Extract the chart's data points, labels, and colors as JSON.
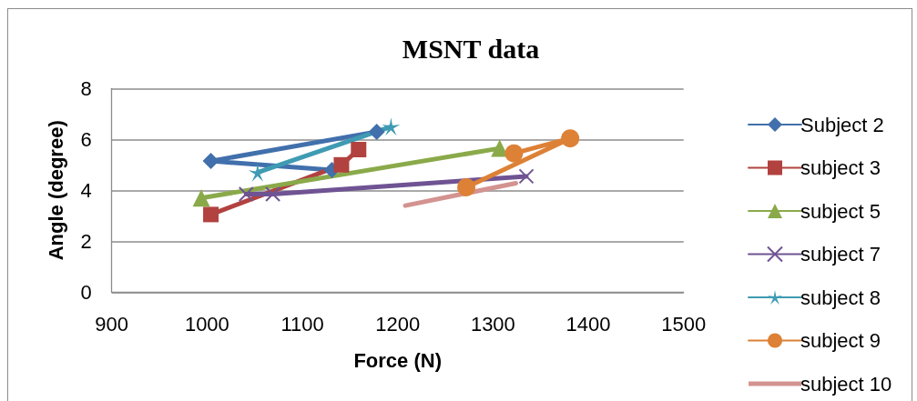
{
  "chart_data": {
    "type": "line",
    "title": "MSNT data",
    "xlabel": "Force (N)",
    "ylabel": "Angle (degree)",
    "xlim": [
      900,
      1500
    ],
    "xticks": [
      900,
      1000,
      1100,
      1200,
      1300,
      1400,
      1500
    ],
    "ylim": [
      0,
      8
    ],
    "yticks": [
      0,
      2,
      4,
      6,
      8
    ],
    "grid": "y",
    "legend": "right",
    "line_style": "solid",
    "series": [
      {
        "name": "Subject 2",
        "color": "#4170ac",
        "marker": "diamond",
        "x": [
          1131,
          1004,
          1178
        ],
        "values": [
          4.8,
          5.15,
          6.3
        ]
      },
      {
        "name": "subject 3",
        "color": "#b2423f",
        "marker": "square",
        "x": [
          1004,
          1141,
          1159
        ],
        "values": [
          3.05,
          5.0,
          5.6
        ]
      },
      {
        "name": "subject 5",
        "color": "#8aaa4a",
        "marker": "triangle",
        "x": [
          994,
          1307
        ],
        "values": [
          3.7,
          5.65
        ]
      },
      {
        "name": "subject 7",
        "color": "#6f5393",
        "marker": "cross",
        "x": [
          1041,
          1069,
          1335
        ],
        "values": [
          3.85,
          3.85,
          4.55
        ]
      },
      {
        "name": "subject 8",
        "color": "#3f9bb3",
        "marker": "star",
        "x": [
          1053,
          1193
        ],
        "values": [
          4.7,
          6.5
        ]
      },
      {
        "name": "subject 9",
        "color": "#dd8136",
        "marker": "circle",
        "x": [
          1272,
          1381,
          1322
        ],
        "values": [
          4.12,
          6.04,
          5.45
        ]
      },
      {
        "name": "subject 10",
        "color": "#d39390",
        "marker": "none",
        "x": [
          1208,
          1324
        ],
        "values": [
          3.4,
          4.28
        ]
      }
    ]
  }
}
